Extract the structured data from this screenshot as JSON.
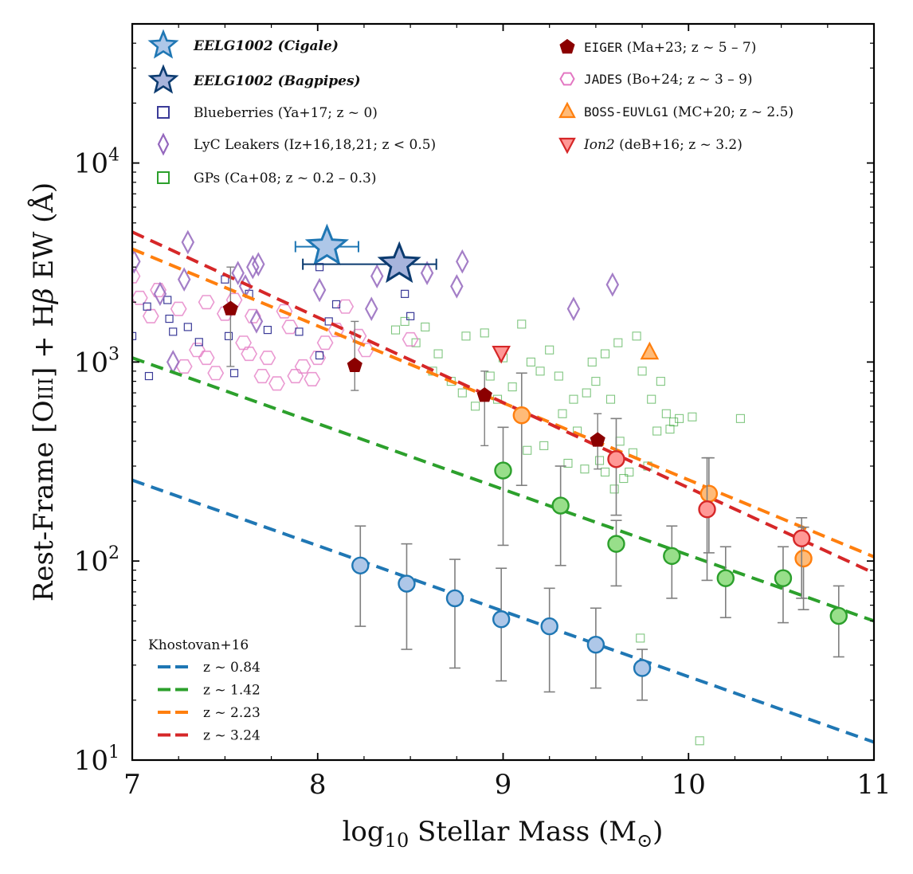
{
  "chart_data": {
    "type": "scatter",
    "title": "",
    "xlabel": "log10 Stellar Mass (M⊙)",
    "ylabel": "Rest-Frame [OIII] + Hβ EW (Å)",
    "xlim": [
      7,
      11
    ],
    "ylim": [
      10,
      50000
    ],
    "yscale": "log",
    "x_ticks": [
      "7",
      "8",
      "9",
      "10",
      "11"
    ],
    "y_ticks": [
      {
        "base": "10",
        "exp": "1",
        "value": 10
      },
      {
        "base": "10",
        "exp": "2",
        "value": 100
      },
      {
        "base": "10",
        "exp": "3",
        "value": 1000
      },
      {
        "base": "10",
        "exp": "4",
        "value": 10000
      }
    ],
    "colors": {
      "blue": "#1f77b4",
      "green": "#2ca02c",
      "orange": "#ff7f0e",
      "red": "#d62728",
      "purple": "#9467bd",
      "navy": "#0b3b70",
      "star_light": "#aec7e8",
      "pink": "#e377c2",
      "darkred": "#8b0000",
      "square_navy": "#3b3b98",
      "gray": "#7f7f7f"
    },
    "legend_top": [
      {
        "label": "EELG1002 (Cigale)",
        "marker": "star",
        "style": "bold"
      },
      {
        "label": "EELG1002 (Bagpipes)",
        "marker": "star-dark",
        "style": "bold"
      },
      {
        "label": "Blueberries (Ya+17; z ~ 0)",
        "marker": "square",
        "style": "normal"
      },
      {
        "label": "LyC Leakers (Iz+16,18,21; z < 0.5)",
        "marker": "diamond",
        "style": "normal"
      },
      {
        "label": "GPs (Ca+08; z ~ 0.2 – 0.3)",
        "marker": "square-green",
        "style": "normal"
      },
      {
        "label_mono": "EIGER",
        "label": " (Ma+23; z ~ 5 – 7)",
        "marker": "pentagon"
      },
      {
        "label_mono": "JADES",
        "label": " (Bo+24; z ~ 3 – 9)",
        "marker": "hexagon"
      },
      {
        "label_mono": "BOSS-EUVLG1",
        "label": " (MC+20; z ~ 2.5)",
        "marker": "triangle-up"
      },
      {
        "label_italic": "Ion2",
        "label": " (deB+16; z ~ 3.2)",
        "marker": "triangle-down"
      }
    ],
    "legend_bottom": {
      "title": "Khostovan+16",
      "entries": [
        {
          "label": "z ~ 0.84",
          "color": "blue"
        },
        {
          "label": "z ~ 1.42",
          "color": "green"
        },
        {
          "label": "z ~ 2.23",
          "color": "orange"
        },
        {
          "label": "z ~ 3.24",
          "color": "red"
        }
      ]
    },
    "trend_lines": [
      {
        "name": "z ~ 0.84",
        "color": "blue",
        "x": [
          7,
          11
        ],
        "y": [
          255,
          12.3
        ]
      },
      {
        "name": "z ~ 1.42",
        "color": "green",
        "x": [
          7,
          11
        ],
        "y": [
          1050,
          50
        ]
      },
      {
        "name": "z ~ 2.23",
        "color": "orange",
        "x": [
          7,
          11
        ],
        "y": [
          3700,
          105
        ]
      },
      {
        "name": "z ~ 3.24",
        "color": "red",
        "x": [
          7,
          11
        ],
        "y": [
          4500,
          87
        ]
      }
    ],
    "binned_series": [
      {
        "name": "z ~ 0.84",
        "color": "blue",
        "fill": "#aec7e8",
        "points": [
          {
            "x": 8.23,
            "y": 95,
            "lo": 47,
            "hi": 150
          },
          {
            "x": 8.48,
            "y": 77,
            "lo": 36,
            "hi": 122
          },
          {
            "x": 8.74,
            "y": 65,
            "lo": 29,
            "hi": 102
          },
          {
            "x": 8.99,
            "y": 51,
            "lo": 25,
            "hi": 92
          },
          {
            "x": 9.25,
            "y": 47,
            "lo": 22,
            "hi": 73
          },
          {
            "x": 9.5,
            "y": 38,
            "lo": 23,
            "hi": 58
          },
          {
            "x": 9.75,
            "y": 29,
            "lo": 20,
            "hi": 36
          }
        ]
      },
      {
        "name": "z ~ 1.42",
        "color": "green",
        "fill": "#98df8a",
        "points": [
          {
            "x": 9.0,
            "y": 285,
            "lo": 120,
            "hi": 470
          },
          {
            "x": 9.31,
            "y": 190,
            "lo": 95,
            "hi": 300
          },
          {
            "x": 9.61,
            "y": 122,
            "lo": 75,
            "hi": 160
          },
          {
            "x": 9.91,
            "y": 106,
            "lo": 65,
            "hi": 150
          },
          {
            "x": 10.2,
            "y": 82,
            "lo": 52,
            "hi": 118
          },
          {
            "x": 10.51,
            "y": 82,
            "lo": 49,
            "hi": 118
          },
          {
            "x": 10.81,
            "y": 53,
            "lo": 33,
            "hi": 75
          }
        ]
      },
      {
        "name": "z ~ 2.23",
        "color": "orange",
        "fill": "#ffbb78",
        "points": [
          {
            "x": 9.1,
            "y": 540,
            "lo": 240,
            "hi": 880
          },
          {
            "x": 10.11,
            "y": 218,
            "lo": 110,
            "hi": 330
          },
          {
            "x": 10.62,
            "y": 103,
            "lo": 57,
            "hi": 148
          }
        ]
      },
      {
        "name": "z ~ 3.24",
        "color": "red",
        "fill": "#ff9896",
        "points": [
          {
            "x": 9.61,
            "y": 325,
            "lo": 170,
            "hi": 520
          },
          {
            "x": 10.1,
            "y": 182,
            "lo": 80,
            "hi": 330
          },
          {
            "x": 10.61,
            "y": 130,
            "lo": 65,
            "hi": 165
          }
        ]
      }
    ],
    "eelg1002": [
      {
        "name": "EELG1002 (Cigale)",
        "x": 8.05,
        "y": 3800,
        "xerr": [
          7.88,
          8.22
        ],
        "color": "#1f77b4",
        "fill": "#aec7e8"
      },
      {
        "name": "EELG1002 (Bagpipes)",
        "x": 8.44,
        "y": 3100,
        "xerr": [
          7.92,
          8.64
        ],
        "color": "#0b3b70",
        "fill": "#a7b4dc"
      }
    ],
    "eiger": [
      {
        "x": 7.53,
        "y": 1850,
        "lo": 950,
        "hi": 3000
      },
      {
        "x": 8.2,
        "y": 960,
        "lo": 720,
        "hi": 1600
      },
      {
        "x": 8.9,
        "y": 680,
        "lo": 380,
        "hi": 900
      },
      {
        "x": 9.51,
        "y": 405,
        "lo": 290,
        "hi": 550
      }
    ],
    "boss_euvlg1": [
      {
        "x": 9.79,
        "y": 1120
      }
    ],
    "ion2": [
      {
        "x": 8.99,
        "y": 1110
      }
    ],
    "blueberries": [
      {
        "x": 7.0,
        "y": 1350
      },
      {
        "x": 7.09,
        "y": 850
      },
      {
        "x": 7.19,
        "y": 2050
      },
      {
        "x": 7.2,
        "y": 1650
      },
      {
        "x": 7.22,
        "y": 1420
      },
      {
        "x": 7.3,
        "y": 1500
      },
      {
        "x": 7.36,
        "y": 1260
      },
      {
        "x": 7.5,
        "y": 2600
      },
      {
        "x": 7.52,
        "y": 1350
      },
      {
        "x": 7.55,
        "y": 880
      },
      {
        "x": 7.63,
        "y": 2200
      },
      {
        "x": 7.73,
        "y": 1450
      },
      {
        "x": 7.9,
        "y": 1420
      },
      {
        "x": 8.01,
        "y": 1080
      },
      {
        "x": 8.01,
        "y": 3000
      },
      {
        "x": 8.06,
        "y": 1600
      },
      {
        "x": 8.1,
        "y": 1950
      },
      {
        "x": 8.47,
        "y": 2200
      },
      {
        "x": 8.5,
        "y": 1700
      },
      {
        "x": 7.08,
        "y": 1900
      }
    ],
    "lyc_leakers": [
      {
        "x": 7.01,
        "y": 3200
      },
      {
        "x": 7.15,
        "y": 2200
      },
      {
        "x": 7.22,
        "y": 1000
      },
      {
        "x": 7.3,
        "y": 4000
      },
      {
        "x": 7.28,
        "y": 2600
      },
      {
        "x": 7.57,
        "y": 2800
      },
      {
        "x": 7.61,
        "y": 2400
      },
      {
        "x": 7.65,
        "y": 3000
      },
      {
        "x": 7.68,
        "y": 3100
      },
      {
        "x": 7.67,
        "y": 1600
      },
      {
        "x": 8.01,
        "y": 2300
      },
      {
        "x": 8.29,
        "y": 1850
      },
      {
        "x": 8.32,
        "y": 2700
      },
      {
        "x": 8.59,
        "y": 2800
      },
      {
        "x": 8.78,
        "y": 3200
      },
      {
        "x": 8.75,
        "y": 2400
      },
      {
        "x": 9.38,
        "y": 1850
      },
      {
        "x": 9.59,
        "y": 2450
      }
    ],
    "jades": [
      {
        "x": 7.0,
        "y": 2700
      },
      {
        "x": 7.04,
        "y": 2100
      },
      {
        "x": 7.1,
        "y": 1700
      },
      {
        "x": 7.14,
        "y": 2300
      },
      {
        "x": 7.25,
        "y": 1850
      },
      {
        "x": 7.28,
        "y": 950
      },
      {
        "x": 7.35,
        "y": 1150
      },
      {
        "x": 7.4,
        "y": 1050
      },
      {
        "x": 7.45,
        "y": 880
      },
      {
        "x": 7.5,
        "y": 1750
      },
      {
        "x": 7.55,
        "y": 2050
      },
      {
        "x": 7.6,
        "y": 1250
      },
      {
        "x": 7.63,
        "y": 1100
      },
      {
        "x": 7.65,
        "y": 1700
      },
      {
        "x": 7.7,
        "y": 850
      },
      {
        "x": 7.73,
        "y": 1050
      },
      {
        "x": 7.78,
        "y": 780
      },
      {
        "x": 7.82,
        "y": 1800
      },
      {
        "x": 7.85,
        "y": 1500
      },
      {
        "x": 7.88,
        "y": 850
      },
      {
        "x": 7.92,
        "y": 950
      },
      {
        "x": 7.97,
        "y": 820
      },
      {
        "x": 8.0,
        "y": 1050
      },
      {
        "x": 8.04,
        "y": 1250
      },
      {
        "x": 8.1,
        "y": 1450
      },
      {
        "x": 8.15,
        "y": 1900
      },
      {
        "x": 8.22,
        "y": 1350
      },
      {
        "x": 8.26,
        "y": 1150
      },
      {
        "x": 8.5,
        "y": 1300
      },
      {
        "x": 7.4,
        "y": 2000
      }
    ],
    "gps": [
      {
        "x": 8.42,
        "y": 1450
      },
      {
        "x": 8.47,
        "y": 1600
      },
      {
        "x": 8.53,
        "y": 1250
      },
      {
        "x": 8.58,
        "y": 1500
      },
      {
        "x": 8.65,
        "y": 1100
      },
      {
        "x": 8.72,
        "y": 800
      },
      {
        "x": 8.78,
        "y": 700
      },
      {
        "x": 8.8,
        "y": 1350
      },
      {
        "x": 8.85,
        "y": 600
      },
      {
        "x": 8.9,
        "y": 1400
      },
      {
        "x": 8.93,
        "y": 850
      },
      {
        "x": 8.97,
        "y": 650
      },
      {
        "x": 9.0,
        "y": 1050
      },
      {
        "x": 9.05,
        "y": 750
      },
      {
        "x": 9.1,
        "y": 1550
      },
      {
        "x": 9.15,
        "y": 1000
      },
      {
        "x": 9.2,
        "y": 900
      },
      {
        "x": 9.25,
        "y": 1150
      },
      {
        "x": 9.3,
        "y": 850
      },
      {
        "x": 9.32,
        "y": 550
      },
      {
        "x": 9.38,
        "y": 650
      },
      {
        "x": 9.4,
        "y": 450
      },
      {
        "x": 9.45,
        "y": 700
      },
      {
        "x": 9.48,
        "y": 1000
      },
      {
        "x": 9.5,
        "y": 800
      },
      {
        "x": 9.52,
        "y": 320
      },
      {
        "x": 9.55,
        "y": 280
      },
      {
        "x": 9.58,
        "y": 650
      },
      {
        "x": 9.63,
        "y": 400
      },
      {
        "x": 9.65,
        "y": 260
      },
      {
        "x": 9.7,
        "y": 350
      },
      {
        "x": 9.72,
        "y": 1350
      },
      {
        "x": 9.75,
        "y": 900
      },
      {
        "x": 9.8,
        "y": 650
      },
      {
        "x": 9.83,
        "y": 450
      },
      {
        "x": 9.85,
        "y": 800
      },
      {
        "x": 9.88,
        "y": 550
      },
      {
        "x": 9.92,
        "y": 500
      },
      {
        "x": 9.95,
        "y": 520
      },
      {
        "x": 10.02,
        "y": 530
      },
      {
        "x": 10.28,
        "y": 520
      },
      {
        "x": 9.13,
        "y": 360
      },
      {
        "x": 9.22,
        "y": 380
      },
      {
        "x": 9.35,
        "y": 310
      },
      {
        "x": 9.44,
        "y": 290
      },
      {
        "x": 9.6,
        "y": 230
      },
      {
        "x": 9.74,
        "y": 41
      },
      {
        "x": 10.06,
        "y": 12.5
      },
      {
        "x": 9.55,
        "y": 1100
      },
      {
        "x": 9.62,
        "y": 1250
      },
      {
        "x": 8.62,
        "y": 900
      },
      {
        "x": 9.68,
        "y": 280
      },
      {
        "x": 9.78,
        "y": 300
      },
      {
        "x": 9.9,
        "y": 460
      }
    ]
  }
}
